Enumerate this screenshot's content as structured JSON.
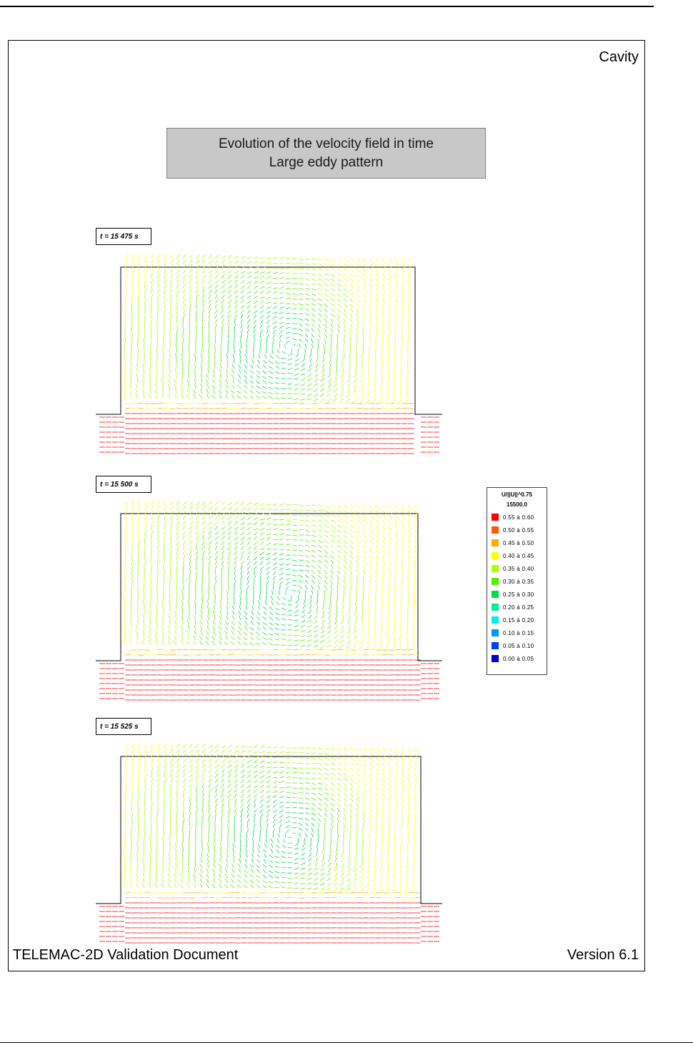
{
  "header": {
    "section_tag": "Cavity"
  },
  "title": {
    "line1": "Evolution of the velocity field in time",
    "line2": "Large eddy pattern"
  },
  "panels": [
    {
      "time_label": "t = 15 475 s"
    },
    {
      "time_label": "t = 15 500 s"
    },
    {
      "time_label": "t = 15 525 s"
    }
  ],
  "legend": {
    "title": "U/||U||^0.75",
    "time": "15500.0",
    "entries": [
      {
        "label": "0.55 à 0.60",
        "color": "#ff0000"
      },
      {
        "label": "0.50 à 0.55",
        "color": "#ff5a00"
      },
      {
        "label": "0.45 à 0.50",
        "color": "#ffaa00"
      },
      {
        "label": "0.40 à 0.45",
        "color": "#ffff00"
      },
      {
        "label": "0.35 à 0.40",
        "color": "#aaff00"
      },
      {
        "label": "0.30 à 0.35",
        "color": "#55ee00"
      },
      {
        "label": "0.25 à 0.30",
        "color": "#00dd44"
      },
      {
        "label": "0.20 à 0.25",
        "color": "#00ee99"
      },
      {
        "label": "0.15 à 0.20",
        "color": "#00eeee"
      },
      {
        "label": "0.10 à 0.15",
        "color": "#0099ff"
      },
      {
        "label": "0.05 à 0.10",
        "color": "#0044ee"
      },
      {
        "label": "0.00 à 0.05",
        "color": "#0000cc"
      }
    ]
  },
  "footer": {
    "document": "TELEMAC-2D Validation Document",
    "version": "Version 6.1"
  }
}
